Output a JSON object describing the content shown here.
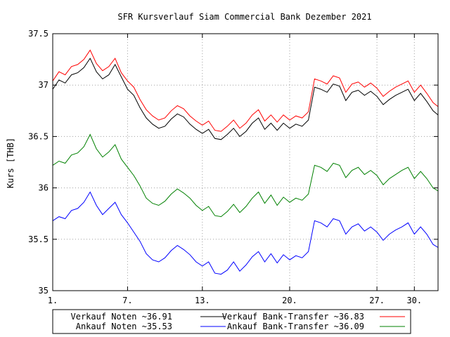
{
  "chart_data": {
    "type": "line",
    "title": "SFR Kursverlauf Siam Commercial Bank Dezember 2021",
    "ylabel": "Kurs [THB]",
    "xlabel": "",
    "xlim": [
      1,
      31.9
    ],
    "ylim": [
      35,
      37.5
    ],
    "yticks": [
      "35",
      "35.5",
      "36",
      "36.5",
      "37",
      "37.5"
    ],
    "xticks": [
      {
        "day": 1,
        "label": "1."
      },
      {
        "day": 7,
        "label": "7."
      },
      {
        "day": 13,
        "label": "13."
      },
      {
        "day": 20,
        "label": "20."
      },
      {
        "day": 27,
        "label": "27."
      },
      {
        "day": 30,
        "label": "30."
      }
    ],
    "grid": true,
    "legend_position": "bottom",
    "series": [
      {
        "name": "Verkauf Noten ~36.91",
        "color": "#000000",
        "x": [
          1,
          1.5,
          2,
          2.5,
          3,
          3.5,
          4,
          4.5,
          5,
          5.5,
          6,
          6.5,
          7,
          7.5,
          8,
          8.5,
          9,
          9.5,
          10,
          10.5,
          11,
          11.5,
          12,
          12.5,
          13,
          13.5,
          14,
          14.5,
          15,
          15.5,
          16,
          16.5,
          17,
          17.5,
          18,
          18.5,
          19,
          19.5,
          20,
          20.5,
          21,
          21.5,
          22,
          22.5,
          23,
          23.5,
          24,
          24.5,
          25,
          25.5,
          26,
          26.5,
          27,
          27.5,
          28,
          28.5,
          29,
          29.5,
          30,
          30.5,
          31,
          31.5,
          31.9
        ],
        "values": [
          36.96,
          37.05,
          37.02,
          37.1,
          37.12,
          37.17,
          37.26,
          37.13,
          37.06,
          37.1,
          37.2,
          37.08,
          36.96,
          36.9,
          36.78,
          36.68,
          36.62,
          36.58,
          36.6,
          36.67,
          36.72,
          36.69,
          36.62,
          36.57,
          36.53,
          36.57,
          36.48,
          36.47,
          36.52,
          36.58,
          36.5,
          36.55,
          36.63,
          36.68,
          36.57,
          36.63,
          36.56,
          36.63,
          36.58,
          36.62,
          36.6,
          36.66,
          36.98,
          36.96,
          36.93,
          37.01,
          36.99,
          36.85,
          36.93,
          36.95,
          36.9,
          36.94,
          36.89,
          36.81,
          36.86,
          36.9,
          36.93,
          36.96,
          36.85,
          36.92,
          36.84,
          36.75,
          36.71
        ]
      },
      {
        "name": "Verkauf Bank-Transfer ~36.83",
        "color": "#ff0000",
        "x": [
          1,
          1.5,
          2,
          2.5,
          3,
          3.5,
          4,
          4.5,
          5,
          5.5,
          6,
          6.5,
          7,
          7.5,
          8,
          8.5,
          9,
          9.5,
          10,
          10.5,
          11,
          11.5,
          12,
          12.5,
          13,
          13.5,
          14,
          14.5,
          15,
          15.5,
          16,
          16.5,
          17,
          17.5,
          18,
          18.5,
          19,
          19.5,
          20,
          20.5,
          21,
          21.5,
          22,
          22.5,
          23,
          23.5,
          24,
          24.5,
          25,
          25.5,
          26,
          26.5,
          27,
          27.5,
          28,
          28.5,
          29,
          29.5,
          30,
          30.5,
          31,
          31.5,
          31.9
        ],
        "values": [
          37.04,
          37.13,
          37.1,
          37.18,
          37.2,
          37.25,
          37.34,
          37.21,
          37.14,
          37.18,
          37.26,
          37.12,
          37.04,
          36.98,
          36.86,
          36.76,
          36.7,
          36.66,
          36.68,
          36.75,
          36.8,
          36.77,
          36.7,
          36.65,
          36.61,
          36.65,
          36.56,
          36.55,
          36.6,
          36.66,
          36.58,
          36.63,
          36.71,
          36.76,
          36.65,
          36.71,
          36.64,
          36.71,
          36.66,
          36.7,
          36.68,
          36.74,
          37.06,
          37.04,
          37.01,
          37.09,
          37.07,
          36.93,
          37.01,
          37.03,
          36.98,
          37.02,
          36.97,
          36.89,
          36.94,
          36.98,
          37.01,
          37.04,
          36.93,
          37,
          36.92,
          36.83,
          36.79
        ]
      },
      {
        "name": "Ankauf Noten ~35.53",
        "color": "#0000ff",
        "x": [
          1,
          1.5,
          2,
          2.5,
          3,
          3.5,
          4,
          4.5,
          5,
          5.5,
          6,
          6.5,
          7,
          7.5,
          8,
          8.5,
          9,
          9.5,
          10,
          10.5,
          11,
          11.5,
          12,
          12.5,
          13,
          13.5,
          14,
          14.5,
          15,
          15.5,
          16,
          16.5,
          17,
          17.5,
          18,
          18.5,
          19,
          19.5,
          20,
          20.5,
          21,
          21.5,
          22,
          22.5,
          23,
          23.5,
          24,
          24.5,
          25,
          25.5,
          26,
          26.5,
          27,
          27.5,
          28,
          28.5,
          29,
          29.5,
          30,
          30.5,
          31,
          31.5,
          31.9
        ],
        "values": [
          35.68,
          35.72,
          35.7,
          35.78,
          35.8,
          35.86,
          35.96,
          35.83,
          35.74,
          35.8,
          35.86,
          35.74,
          35.66,
          35.57,
          35.48,
          35.36,
          35.3,
          35.28,
          35.32,
          35.39,
          35.44,
          35.4,
          35.35,
          35.28,
          35.24,
          35.28,
          35.17,
          35.16,
          35.2,
          35.28,
          35.19,
          35.25,
          35.33,
          35.38,
          35.28,
          35.36,
          35.27,
          35.35,
          35.3,
          35.34,
          35.32,
          35.38,
          35.68,
          35.66,
          35.62,
          35.7,
          35.68,
          35.55,
          35.62,
          35.65,
          35.58,
          35.62,
          35.57,
          35.49,
          35.55,
          35.59,
          35.62,
          35.66,
          35.55,
          35.62,
          35.55,
          35.45,
          35.42
        ]
      },
      {
        "name": "Ankauf Bank-Transfer ~36.09",
        "color": "#008000",
        "x": [
          1,
          1.5,
          2,
          2.5,
          3,
          3.5,
          4,
          4.5,
          5,
          5.5,
          6,
          6.5,
          7,
          7.5,
          8,
          8.5,
          9,
          9.5,
          10,
          10.5,
          11,
          11.5,
          12,
          12.5,
          13,
          13.5,
          14,
          14.5,
          15,
          15.5,
          16,
          16.5,
          17,
          17.5,
          18,
          18.5,
          19,
          19.5,
          20,
          20.5,
          21,
          21.5,
          22,
          22.5,
          23,
          23.5,
          24,
          24.5,
          25,
          25.5,
          26,
          26.5,
          27,
          27.5,
          28,
          28.5,
          29,
          29.5,
          30,
          30.5,
          31,
          31.5,
          31.9
        ],
        "values": [
          36.22,
          36.26,
          36.24,
          36.32,
          36.34,
          36.4,
          36.52,
          36.38,
          36.3,
          36.35,
          36.42,
          36.28,
          36.2,
          36.12,
          36.02,
          35.9,
          35.85,
          35.83,
          35.87,
          35.94,
          35.99,
          35.95,
          35.9,
          35.83,
          35.78,
          35.82,
          35.73,
          35.72,
          35.77,
          35.84,
          35.76,
          35.82,
          35.9,
          35.96,
          35.85,
          35.93,
          35.83,
          35.91,
          35.86,
          35.9,
          35.88,
          35.94,
          36.22,
          36.2,
          36.16,
          36.24,
          36.22,
          36.1,
          36.17,
          36.2,
          36.13,
          36.17,
          36.12,
          36.03,
          36.09,
          36.13,
          36.17,
          36.2,
          36.09,
          36.16,
          36.09,
          36,
          35.97
        ]
      }
    ]
  }
}
